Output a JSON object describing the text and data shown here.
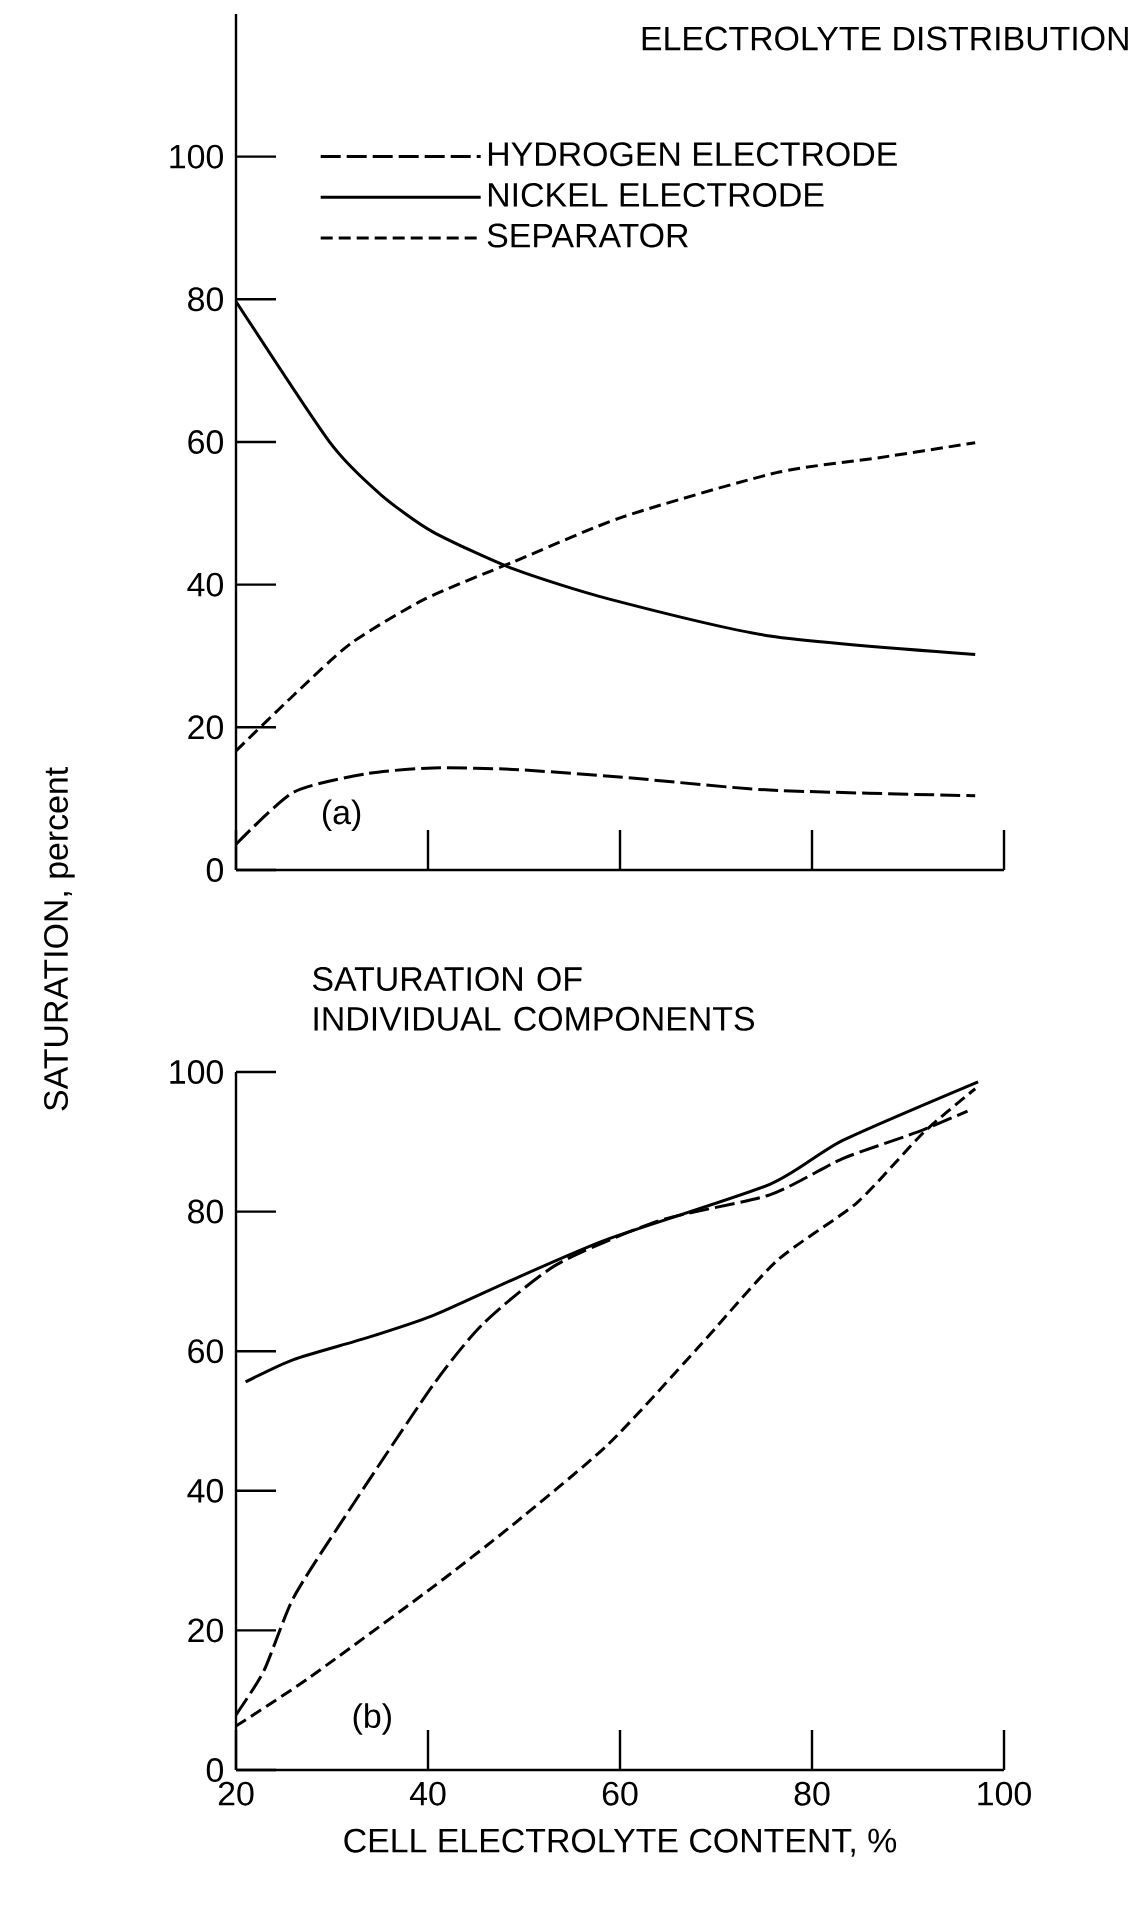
{
  "chart_data": [
    {
      "type": "line",
      "title": "ELECTROLYTE DISTRIBUTION",
      "annotations": [
        "(a)"
      ],
      "xlim": [
        20,
        100
      ],
      "ylim": [
        0,
        120
      ],
      "xticks": [
        20,
        40,
        60,
        80,
        100
      ],
      "yticks": [
        0,
        20,
        40,
        60,
        80,
        100
      ],
      "tick_labels": "y",
      "legend": "top right",
      "grid": false,
      "series": [
        {
          "name": "HYDROGEN ELECTRODE",
          "color": "#000000",
          "line_style": "dashed",
          "x": [
            20,
            26,
            33.6,
            40.5,
            48.9,
            60.3,
            75.6,
            97
          ],
          "values": [
            3.6,
            10.9,
            13.5,
            14.3,
            14.1,
            13,
            11.2,
            10.4
          ]
        },
        {
          "name": "NICKEL ELECTRODE",
          "color": "#000000",
          "line_style": "solid",
          "x": [
            20,
            29.8,
            35.1,
            40.5,
            48.9,
            58.8,
            75.6,
            97
          ],
          "values": [
            79.7,
            59.9,
            52.6,
            47.4,
            42.2,
            38,
            32.8,
            30.2
          ]
        },
        {
          "name": "SEPARATOR",
          "color": "#000000",
          "line_style": "dashed",
          "x": [
            20,
            26,
            32,
            39.7,
            48.9,
            60.3,
            76.3,
            87,
            97
          ],
          "values": [
            16.7,
            24.5,
            31.8,
            38,
            43.2,
            49.5,
            55.7,
            57.8,
            59.9
          ]
        }
      ]
    },
    {
      "type": "line",
      "title": "SATURATION OF INDIVIDUAL COMPONENTS",
      "xlabel": "CELL ELECTROLYTE CONTENT, %",
      "ylabel": "SATURATION, percent",
      "annotations": [
        "(b)"
      ],
      "xlim": [
        20,
        100
      ],
      "ylim": [
        0,
        100
      ],
      "xticks": [
        20,
        40,
        60,
        80,
        100
      ],
      "yticks": [
        0,
        20,
        40,
        60,
        80,
        100
      ],
      "grid": false,
      "series": [
        {
          "color": "#000000",
          "line_style": "dashed",
          "x": [
            20,
            22.9,
            26,
            31.3,
            40.5,
            45.8,
            53.4,
            64.1,
            75.6,
            83.2,
            90.8,
            96.2
          ],
          "values": [
            7.9,
            14.2,
            24.7,
            36.2,
            55.1,
            64,
            72.4,
            78.7,
            82.4,
            87.6,
            91.3,
            94.4
          ]
        },
        {
          "color": "#000000",
          "line_style": "solid",
          "x": [
            21,
            26,
            33.6,
            40.5,
            48.9,
            58.8,
            75.6,
            83.2,
            97.3
          ],
          "values": [
            55.6,
            58.8,
            61.9,
            65.1,
            70.3,
            76.1,
            83.9,
            90.2,
            98.6
          ]
        },
        {
          "color": "#000000",
          "line_style": "dashed",
          "x": [
            20,
            27.5,
            40.5,
            48.9,
            58.8,
            68,
            76.3,
            84.7,
            91.6,
            97
          ],
          "values": [
            6.3,
            13.1,
            26.2,
            35.2,
            46.7,
            60.3,
            72.9,
            81.3,
            91.3,
            97.6
          ]
        }
      ]
    }
  ]
}
